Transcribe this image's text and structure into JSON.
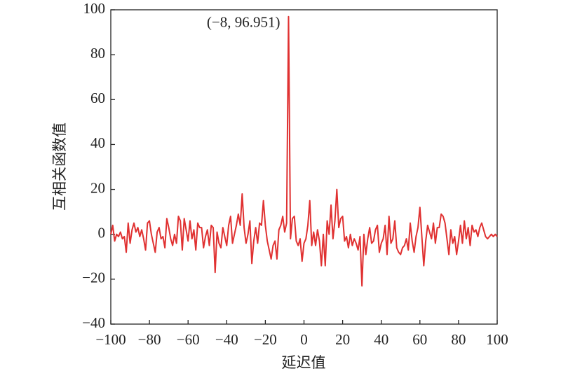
{
  "chart_data": {
    "type": "line",
    "xlabel": "延迟值",
    "ylabel": "互相关函数值",
    "annotation": {
      "text": "(−8, 96.951)",
      "x": -8,
      "y": 96.951
    },
    "color": "#e03131",
    "x": [
      -100,
      -99,
      -98,
      -97,
      -96,
      -95,
      -94,
      -93,
      -92,
      -91,
      -90,
      -89,
      -88,
      -87,
      -86,
      -85,
      -84,
      -83,
      -82,
      -81,
      -80,
      -79,
      -78,
      -77,
      -76,
      -75,
      -74,
      -73,
      -72,
      -71,
      -70,
      -69,
      -68,
      -67,
      -66,
      -65,
      -64,
      -63,
      -62,
      -61,
      -60,
      -59,
      -58,
      -57,
      -56,
      -55,
      -54,
      -53,
      -52,
      -51,
      -50,
      -49,
      -48,
      -47,
      -46,
      -45,
      -44,
      -43,
      -42,
      -41,
      -40,
      -39,
      -38,
      -37,
      -36,
      -35,
      -34,
      -33,
      -32,
      -31,
      -30,
      -29,
      -28,
      -27,
      -26,
      -25,
      -24,
      -23,
      -22,
      -21,
      -20,
      -19,
      -18,
      -17,
      -16,
      -15,
      -14,
      -13,
      -12,
      -11,
      -10,
      -9,
      -8,
      -7,
      -6,
      -5,
      -4,
      -3,
      -2,
      -1,
      0,
      1,
      2,
      3,
      4,
      5,
      6,
      7,
      8,
      9,
      10,
      11,
      12,
      13,
      14,
      15,
      16,
      17,
      18,
      19,
      20,
      21,
      22,
      23,
      24,
      25,
      26,
      27,
      28,
      29,
      30,
      31,
      32,
      33,
      34,
      35,
      36,
      37,
      38,
      39,
      40,
      41,
      42,
      43,
      44,
      45,
      46,
      47,
      48,
      49,
      50,
      51,
      52,
      53,
      54,
      55,
      56,
      57,
      58,
      59,
      60,
      61,
      62,
      63,
      64,
      65,
      66,
      67,
      68,
      69,
      70,
      71,
      72,
      73,
      74,
      75,
      76,
      77,
      78,
      79,
      80,
      81,
      82,
      83,
      84,
      85,
      86,
      87,
      88,
      89,
      90,
      91,
      92,
      93,
      94,
      95,
      96,
      97,
      98,
      99,
      100
    ],
    "values": [
      0,
      4,
      -3,
      0,
      -1,
      1,
      -2,
      -1,
      -8,
      5,
      -4,
      2,
      5,
      1,
      3,
      -1,
      2,
      -2,
      -7,
      5,
      6,
      0,
      -4,
      -8,
      1,
      3,
      -2,
      -1,
      -6,
      7,
      3,
      -2,
      -5,
      0,
      -4,
      8,
      6,
      -7,
      7,
      2,
      -3,
      6,
      -2,
      2,
      -7,
      5,
      3,
      3,
      -6,
      -1,
      2,
      -5,
      4,
      3,
      -17,
      1,
      -4,
      -6,
      3,
      -1,
      -5,
      4,
      8,
      -4,
      0,
      4,
      9,
      4,
      18,
      3,
      -4,
      0,
      6,
      -13,
      -3,
      3,
      -4,
      5,
      4,
      15,
      4,
      -3,
      -7,
      -11,
      -5,
      -3,
      -11,
      2,
      4,
      8,
      1,
      5,
      96.951,
      -2,
      7,
      8,
      -3,
      -5,
      -2,
      -12,
      -4,
      -2,
      4,
      15,
      -5,
      1,
      -5,
      2,
      -3,
      -14,
      0,
      -14,
      6,
      0,
      13,
      -2,
      6,
      20,
      3,
      7,
      8,
      -3,
      -1,
      -6,
      0,
      -5,
      -2,
      -4,
      -7,
      -1,
      -23,
      0,
      -9,
      -2,
      3,
      -4,
      -3,
      2,
      4,
      -8,
      -4,
      -2,
      4,
      -9,
      8,
      -4,
      -2,
      6,
      -6,
      -8,
      -9,
      -6,
      -5,
      -2,
      -7,
      5,
      -3,
      -8,
      -1,
      3,
      12,
      -1,
      -14,
      -3,
      4,
      1,
      -2,
      5,
      -4,
      3,
      3,
      9,
      8,
      5,
      -2,
      -9,
      2,
      -4,
      -1,
      -9,
      -3,
      4,
      -4,
      6,
      -2,
      3,
      -5,
      4,
      1,
      2,
      -1,
      3,
      5,
      2,
      -1,
      -2,
      -1,
      0,
      -1,
      0,
      -1
    ],
    "xlim": [
      -100,
      100
    ],
    "xticks": [
      {
        "value": -100,
        "label": "−100"
      },
      {
        "value": -80,
        "label": "−80"
      },
      {
        "value": -60,
        "label": "−60"
      },
      {
        "value": -40,
        "label": "−40"
      },
      {
        "value": -20,
        "label": "−20"
      },
      0,
      20,
      40,
      60,
      80,
      100
    ],
    "ylim": [
      -40,
      100
    ],
    "yticks": [
      {
        "value": -40,
        "label": "−40"
      },
      {
        "value": -20,
        "label": "−20"
      },
      0,
      20,
      40,
      60,
      80,
      100
    ],
    "grid": false
  }
}
